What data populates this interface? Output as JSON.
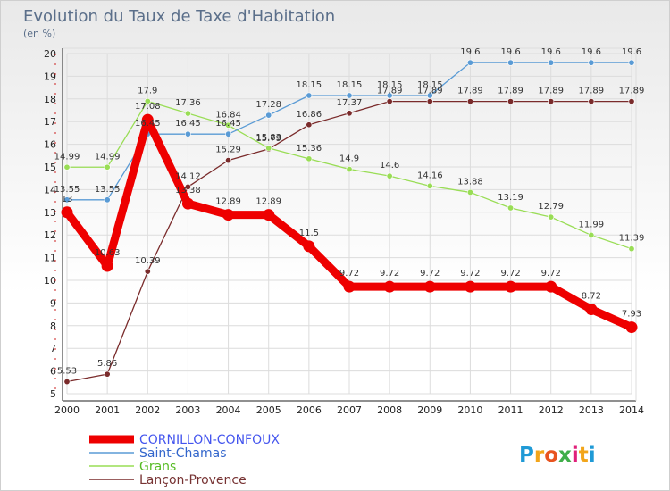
{
  "chart_data": {
    "type": "line",
    "title": "Evolution du Taux de Taxe d'Habitation",
    "subtitle": "(en %)",
    "xlabel": "",
    "ylabel": "",
    "x": [
      2000,
      2001,
      2002,
      2003,
      2004,
      2005,
      2006,
      2007,
      2008,
      2009,
      2010,
      2011,
      2012,
      2013,
      2014
    ],
    "ylim": [
      5,
      20
    ],
    "yticks": [
      5,
      6,
      7,
      8,
      9,
      10,
      11,
      12,
      13,
      14,
      15,
      16,
      17,
      18,
      19,
      20
    ],
    "grid": true,
    "legend_position": "bottom-left",
    "brand": "Proxiti",
    "series": [
      {
        "name": "CORNILLON-CONFOUX",
        "color": "#ee0000",
        "label_color": "#4455ee",
        "values": [
          13,
          10.63,
          17.08,
          13.38,
          12.89,
          12.89,
          11.5,
          9.72,
          9.72,
          9.72,
          9.72,
          9.72,
          9.72,
          8.72,
          7.93
        ],
        "labels": [
          "13",
          "10.63",
          "17.08",
          "13.38",
          "12.89",
          "12.89",
          "11.5",
          "9.72",
          "9.72",
          "9.72",
          "9.72",
          "9.72",
          "9.72",
          "8.72",
          "7.93"
        ]
      },
      {
        "name": "Saint-Chamas",
        "color": "#5a9bd5",
        "label_color": "#4455ee",
        "values": [
          13.55,
          13.55,
          16.45,
          16.45,
          16.45,
          17.28,
          18.15,
          18.15,
          18.15,
          18.15,
          19.6,
          19.6,
          19.6,
          19.6,
          19.6
        ],
        "labels": [
          "13.55",
          "13.55",
          "16.45",
          "16.45",
          "16.45",
          "17.28",
          "18.15",
          "18.15",
          "18.15",
          "18.15",
          "19.6",
          "19.6",
          "19.6",
          "19.6",
          "19.6"
        ]
      },
      {
        "name": "Grans",
        "color": "#99dd55",
        "label_color": "#66cc33",
        "values": [
          14.99,
          14.99,
          17.9,
          17.36,
          16.84,
          15.83,
          15.36,
          14.9,
          14.6,
          14.16,
          13.88,
          13.19,
          12.79,
          11.99,
          11.39
        ],
        "labels": [
          "14.99",
          "14.99",
          "17.9",
          "17.36",
          "16.84",
          "15.83",
          "15.36",
          "14.9",
          "14.6",
          "14.16",
          "13.88",
          "13.19",
          "12.79",
          "11.99",
          "11.39"
        ]
      },
      {
        "name": "Lançon-Provence",
        "color": "#7a2b2b",
        "label_color": "#883333",
        "values": [
          5.53,
          5.86,
          10.39,
          14.12,
          15.29,
          15.79,
          16.86,
          17.37,
          17.89,
          17.89,
          17.89,
          17.89,
          17.89,
          17.89,
          17.89
        ],
        "labels": [
          "5.53",
          "5.86",
          "10.39",
          "14.12",
          "15.29",
          "15.79",
          "16.86",
          "17.37",
          "17.89",
          "17.89",
          "17.89",
          "17.89",
          "17.89",
          "17.89",
          "17.89"
        ]
      }
    ]
  }
}
